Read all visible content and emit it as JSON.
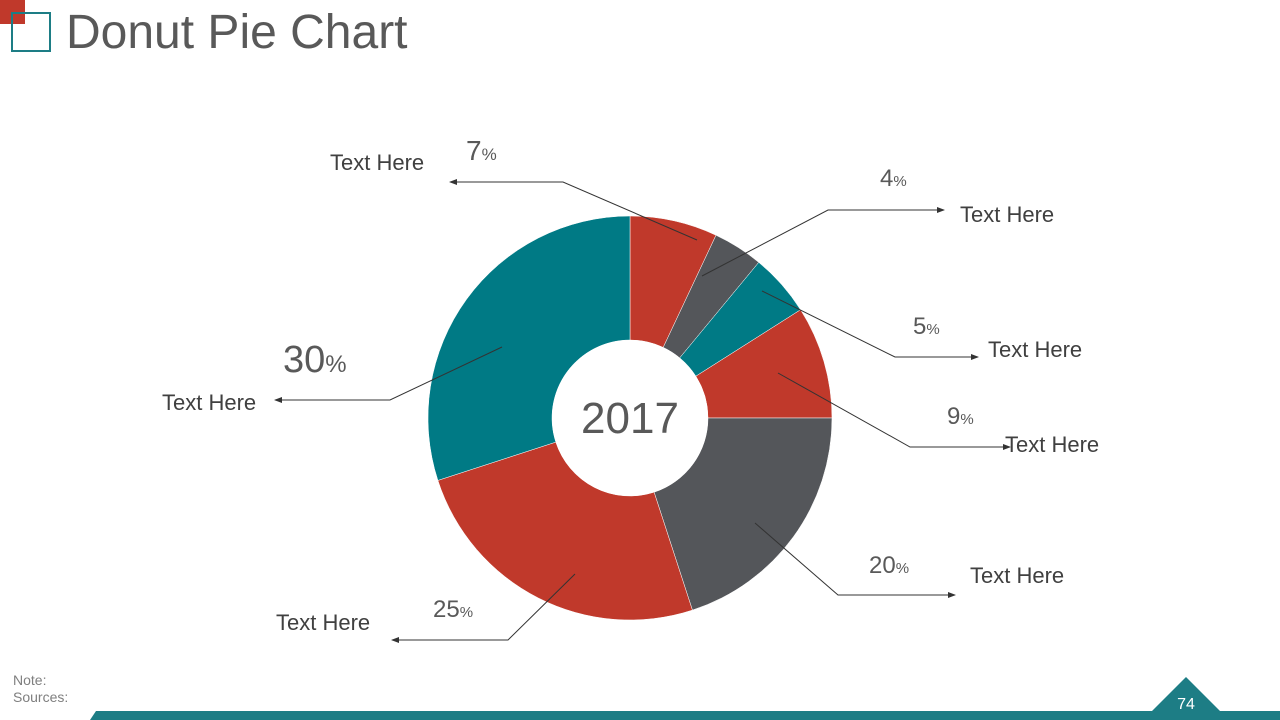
{
  "title": "Donut Pie Chart",
  "colors": {
    "red": "#c0392b",
    "gray": "#54565a",
    "teal": "#007a85",
    "text": "#595959"
  },
  "chart_data": {
    "type": "pie",
    "variant": "donut",
    "center_label": "2017",
    "slices": [
      {
        "value": 7,
        "label": "Text Here",
        "color": "#c0392b"
      },
      {
        "value": 4,
        "label": "Text Here",
        "color": "#54565a"
      },
      {
        "value": 5,
        "label": "Text Here",
        "color": "#007a85"
      },
      {
        "value": 9,
        "label": "Text Here",
        "color": "#c0392b"
      },
      {
        "value": 20,
        "label": "Text Here",
        "color": "#54565a"
      },
      {
        "value": 25,
        "label": "Text Here",
        "color": "#c0392b"
      },
      {
        "value": 30,
        "label": "Text Here",
        "color": "#007a85"
      }
    ],
    "percent_sign": "%"
  },
  "footer": {
    "note_label": "Note:",
    "sources_label": "Sources:",
    "page_number": "74"
  }
}
